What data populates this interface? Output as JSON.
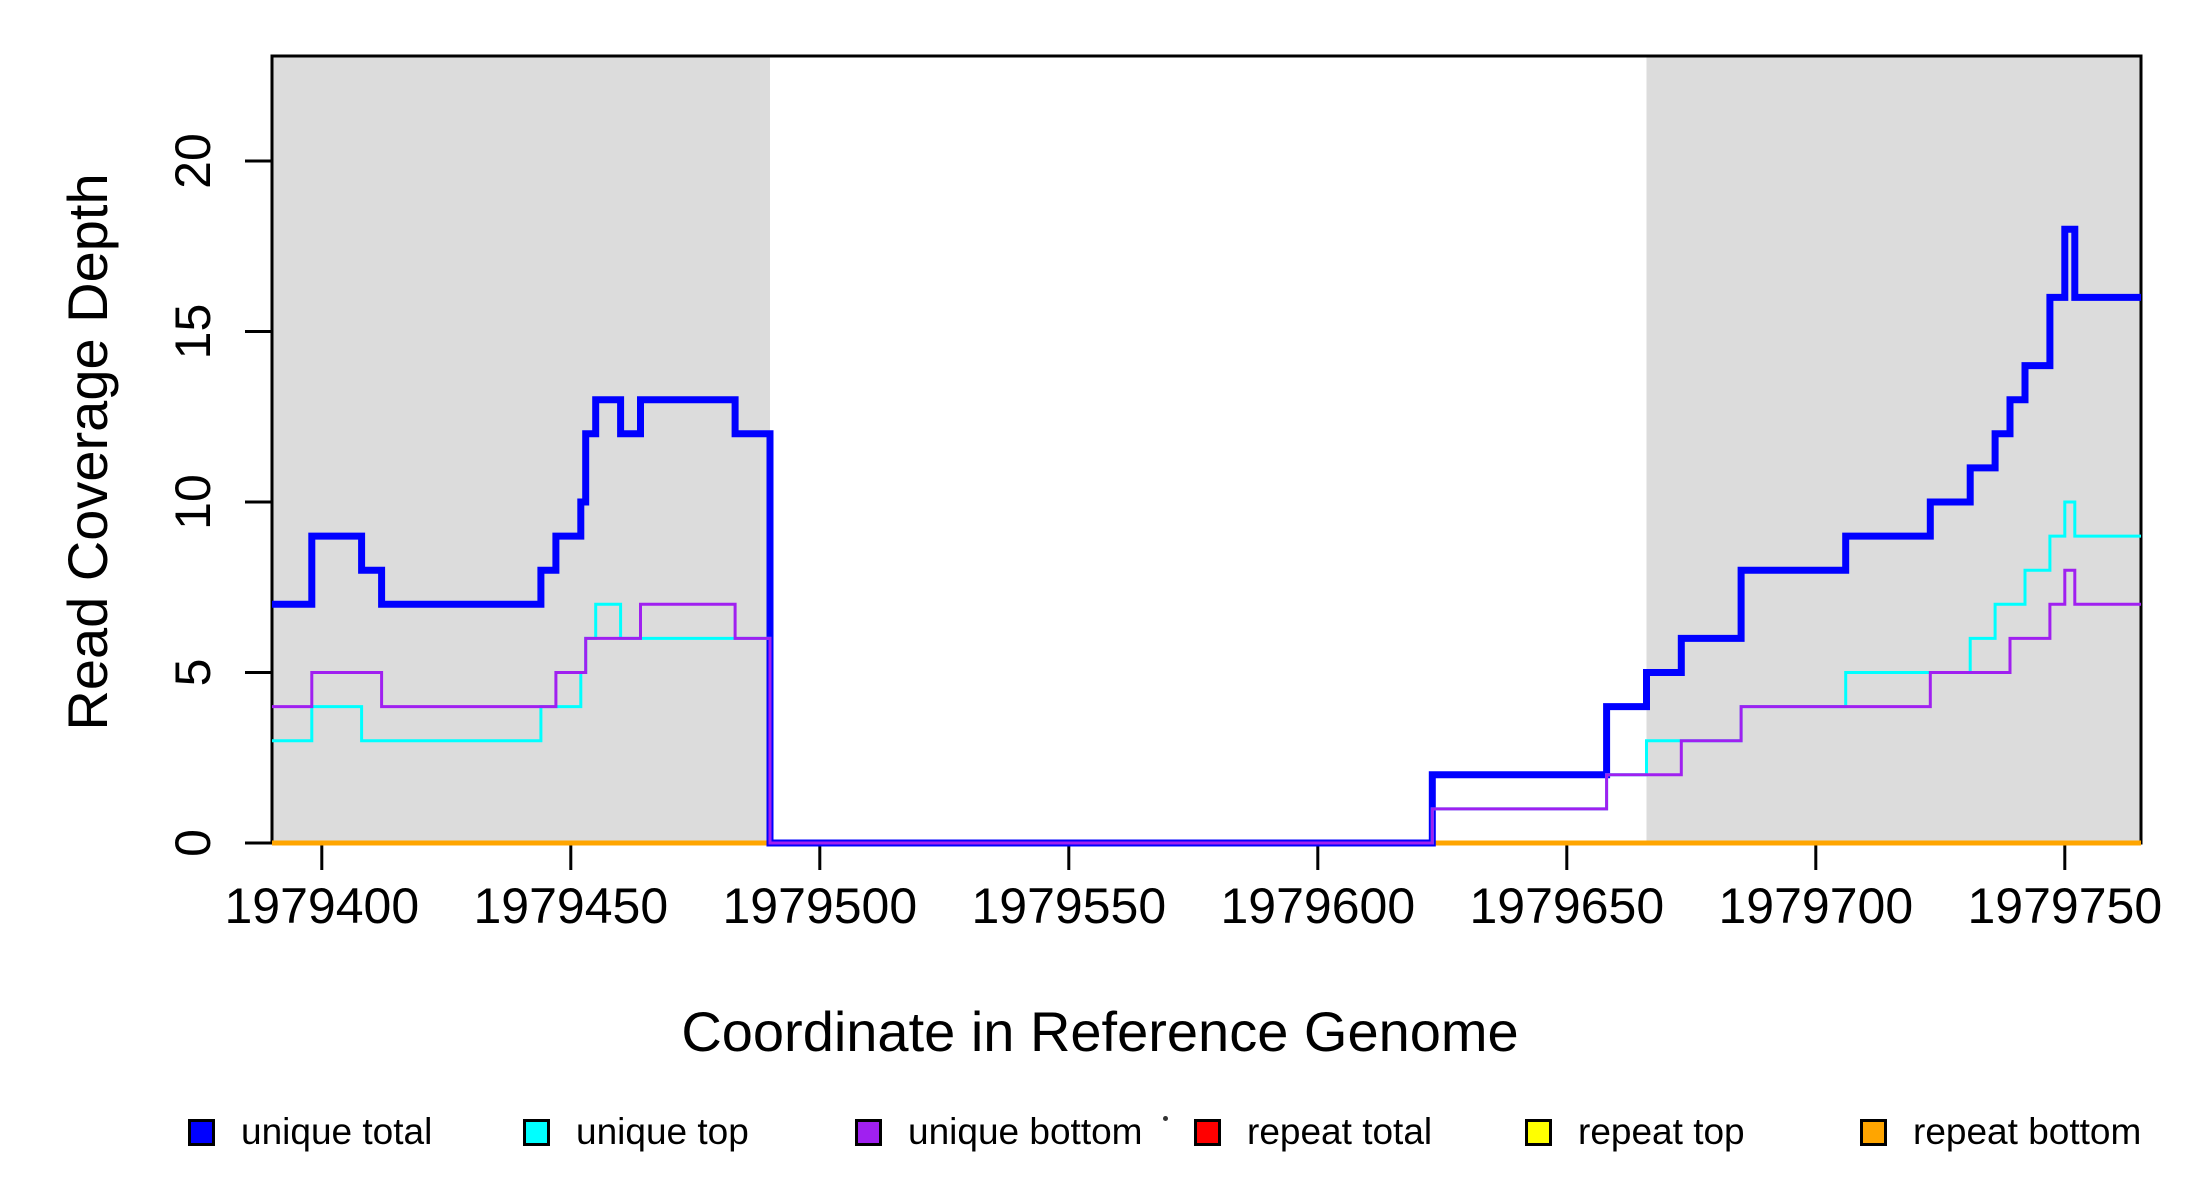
{
  "chart_data": {
    "type": "line",
    "subtype": "step-coverage",
    "title": "",
    "xlabel": "Coordinate in Reference Genome",
    "ylabel": "Read Coverage Depth",
    "xlim": [
      1979390,
      1979765.3
    ],
    "ylim": [
      0,
      23.08
    ],
    "x_ticks": [
      1979400,
      1979450,
      1979500,
      1979550,
      1979600,
      1979650,
      1979700,
      1979750
    ],
    "y_ticks": [
      0,
      5,
      10,
      15,
      20
    ],
    "grid": false,
    "legend_position": "bottom",
    "plot_background": "#ffffff",
    "shaded_regions": [
      {
        "name": "left-repeat-region",
        "x0": 1979390,
        "x1": 1979490,
        "color": "#DCDCDC"
      },
      {
        "name": "right-repeat-region",
        "x0": 1979666,
        "x1": 1979765.3,
        "color": "#DCDCDC"
      }
    ],
    "series": [
      {
        "name": "repeat total",
        "color": "#FF0000",
        "lwd": 3,
        "segments": [
          {
            "points": [
              [
                1979390,
                0
              ]
            ],
            "x_end": 1979490
          },
          {
            "points": [
              [
                1979623,
                0
              ]
            ],
            "x_end": 1979765.3
          }
        ]
      },
      {
        "name": "repeat top",
        "color": "#FFFF00",
        "lwd": 3,
        "segments": [
          {
            "points": [
              [
                1979390,
                0
              ]
            ],
            "x_end": 1979490
          },
          {
            "points": [
              [
                1979623,
                0
              ]
            ],
            "x_end": 1979765.3
          }
        ]
      },
      {
        "name": "repeat bottom",
        "color": "#FFA500",
        "lwd": 5,
        "segments": [
          {
            "points": [
              [
                1979390,
                0
              ]
            ],
            "x_end": 1979490
          },
          {
            "points": [
              [
                1979623,
                0
              ]
            ],
            "x_end": 1979765.3
          }
        ]
      },
      {
        "name": "unique total",
        "color": "#0000FF",
        "lwd": 7,
        "segments": [
          {
            "points": [
              [
                1979390,
                7
              ],
              [
                1979398,
                9
              ],
              [
                1979408,
                8
              ],
              [
                1979412,
                7
              ],
              [
                1979444,
                8
              ],
              [
                1979447,
                9
              ],
              [
                1979452,
                10
              ],
              [
                1979453,
                12
              ],
              [
                1979455,
                13
              ],
              [
                1979460,
                12
              ],
              [
                1979464,
                13
              ],
              [
                1979483,
                12
              ],
              [
                1979490,
                0
              ],
              [
                1979623,
                2
              ],
              [
                1979658,
                4
              ],
              [
                1979666,
                5
              ],
              [
                1979673,
                6
              ],
              [
                1979685,
                8
              ],
              [
                1979706,
                9
              ],
              [
                1979723,
                10
              ],
              [
                1979731,
                11
              ],
              [
                1979736,
                12
              ],
              [
                1979739,
                13
              ],
              [
                1979742,
                14
              ],
              [
                1979747,
                16
              ],
              [
                1979750,
                18
              ],
              [
                1979752,
                16
              ]
            ],
            "x_end": 1979765.3
          }
        ]
      },
      {
        "name": "unique top",
        "color": "#00FFFF",
        "lwd": 3,
        "segments": [
          {
            "points": [
              [
                1979390,
                3
              ],
              [
                1979398,
                4
              ],
              [
                1979408,
                3
              ],
              [
                1979444,
                4
              ],
              [
                1979452,
                5
              ],
              [
                1979453,
                6
              ],
              [
                1979455,
                7
              ],
              [
                1979460,
                6
              ],
              [
                1979490,
                0
              ],
              [
                1979623,
                1
              ],
              [
                1979658,
                2
              ],
              [
                1979666,
                3
              ],
              [
                1979685,
                4
              ],
              [
                1979706,
                5
              ],
              [
                1979731,
                6
              ],
              [
                1979736,
                7
              ],
              [
                1979742,
                8
              ],
              [
                1979747,
                9
              ],
              [
                1979750,
                10
              ],
              [
                1979752,
                9
              ]
            ],
            "x_end": 1979765.3
          }
        ]
      },
      {
        "name": "unique bottom",
        "color": "#A020F0",
        "lwd": 3,
        "segments": [
          {
            "points": [
              [
                1979390,
                4
              ],
              [
                1979398,
                5
              ],
              [
                1979412,
                4
              ],
              [
                1979447,
                5
              ],
              [
                1979453,
                6
              ],
              [
                1979464,
                7
              ],
              [
                1979483,
                6
              ],
              [
                1979490,
                0
              ],
              [
                1979623,
                1
              ],
              [
                1979658,
                2
              ],
              [
                1979673,
                3
              ],
              [
                1979685,
                4
              ],
              [
                1979723,
                5
              ],
              [
                1979739,
                6
              ],
              [
                1979747,
                7
              ],
              [
                1979750,
                8
              ],
              [
                1979752,
                7
              ]
            ],
            "x_end": 1979765.3
          }
        ]
      }
    ],
    "axis_color": "#000000",
    "tick_label_fontsize": 50,
    "tick_length": 27
  },
  "legend": {
    "items": [
      {
        "label": "unique total",
        "color": "#0000FF"
      },
      {
        "label": "unique top",
        "color": "#00FFFF"
      },
      {
        "label": "unique bottom",
        "color": "#A020F0"
      },
      {
        "label": "repeat total",
        "color": "#FF0000"
      },
      {
        "label": "repeat top",
        "color": "#FFFF00"
      },
      {
        "label": "repeat bottom",
        "color": "#FFA500"
      }
    ]
  }
}
